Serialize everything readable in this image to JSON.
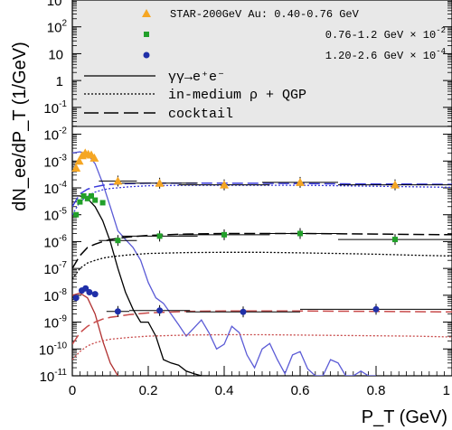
{
  "chart_data": {
    "type": "scatter",
    "title": "",
    "xlabel": "P_T (GeV)",
    "ylabel": "dN_ee/dP_T (1/GeV)",
    "xlim": [
      0,
      1
    ],
    "ylim_log10": [
      -11,
      3
    ],
    "y_scale": "log",
    "x_tick_labels": [
      "0",
      "0.2",
      "0.4",
      "0.6",
      "0.8",
      "1"
    ],
    "y_tick_labels": [
      "10^3",
      "10^2",
      "10",
      "1",
      "10^-1",
      "10^-2",
      "10^-3",
      "10^-4",
      "10^-5",
      "10^-6",
      "10^-7",
      "10^-8",
      "10^-9",
      "10^-10",
      "10^-11"
    ],
    "legend_placement": "top",
    "legend": {
      "data_entries": [
        {
          "label": "STAR-200GeV Au: 0.40-0.76 GeV",
          "color": "#f5a623",
          "marker": "triangle"
        },
        {
          "label": "0.76-1.2 GeV × 10",
          "exp": "-2",
          "color": "#22a02a",
          "marker": "square"
        },
        {
          "label": "1.20-2.6 GeV × 10",
          "exp": "-4",
          "color": "#1f2fa8",
          "marker": "circle"
        }
      ],
      "line_entries": [
        {
          "label": "γγ→e⁺e⁻",
          "style": "solid"
        },
        {
          "label": "in-medium ρ + QGP",
          "style": "dotted"
        },
        {
          "label": "cocktail",
          "style": "dashed"
        }
      ]
    },
    "series": [
      {
        "name": "STAR-200GeV Au: 0.40-0.76 GeV",
        "color": "#f5a623",
        "marker": "triangle",
        "x": [
          0.01,
          0.018,
          0.026,
          0.034,
          0.042,
          0.05,
          0.058,
          0.12,
          0.23,
          0.4,
          0.6,
          0.85
        ],
        "y": [
          0.00055,
          0.001,
          0.0016,
          0.002,
          0.0018,
          0.0017,
          0.0013,
          0.00018,
          0.00015,
          0.00013,
          0.00016,
          0.00013
        ],
        "xerr": [
          0,
          0,
          0,
          0,
          0,
          0,
          0,
          0.05,
          0.1,
          0.12,
          0.1,
          0.15
        ]
      },
      {
        "name": "0.76-1.2 GeV × 10^-2",
        "color": "#22a02a",
        "marker": "square",
        "x": [
          0.01,
          0.02,
          0.03,
          0.04,
          0.05,
          0.06,
          0.08,
          0.12,
          0.23,
          0.4,
          0.6,
          0.85
        ],
        "y": [
          1e-05,
          3e-05,
          5e-05,
          4e-05,
          5e-05,
          3.5e-05,
          2.8e-05,
          1.1e-06,
          1.6e-06,
          1.8e-06,
          2e-06,
          1.2e-06
        ],
        "xerr": [
          0,
          0,
          0,
          0,
          0,
          0,
          0,
          0.05,
          0.1,
          0.12,
          0.1,
          0.15
        ]
      },
      {
        "name": "1.20-2.6 GeV × 10^-4",
        "color": "#1f2fa8",
        "marker": "circle",
        "x": [
          0.01,
          0.025,
          0.035,
          0.045,
          0.06,
          0.12,
          0.23,
          0.45,
          0.8
        ],
        "y": [
          8e-09,
          1.5e-08,
          1.8e-08,
          1.3e-08,
          1.1e-08,
          2.5e-09,
          2.7e-09,
          2.4e-09,
          3e-09
        ],
        "xerr": [
          0,
          0,
          0,
          0,
          0,
          0.03,
          0.08,
          0.15,
          0.2
        ]
      }
    ],
    "curves": [
      {
        "name": "γγ→e⁺e⁻ (0.40-0.76)",
        "color": "#5b5bd6",
        "style": "solid",
        "x": [
          0.0,
          0.02,
          0.04,
          0.06,
          0.08,
          0.1,
          0.12,
          0.14,
          0.16,
          0.18,
          0.2,
          0.22,
          0.24,
          0.26,
          0.28,
          0.3,
          0.32,
          0.34,
          0.36,
          0.38,
          0.4,
          0.42,
          0.44,
          0.46,
          0.48,
          0.5,
          0.52,
          0.54,
          0.56,
          0.58,
          0.6,
          0.62,
          0.64,
          0.66,
          0.68,
          0.7,
          0.72,
          0.74,
          0.76,
          0.78,
          0.8
        ],
        "y": [
          0.002,
          0.0022,
          0.0018,
          0.0008,
          0.00015,
          2e-05,
          2.5e-06,
          1.2e-06,
          6e-07,
          2e-07,
          3e-08,
          8e-09,
          5e-09,
          2e-09,
          8e-10,
          3e-10,
          6e-10,
          1.2e-09,
          4e-10,
          1e-10,
          1.5e-10,
          7e-10,
          4e-10,
          6e-11,
          2e-11,
          1e-10,
          1.6e-10,
          4e-11,
          1.2e-11,
          6e-11,
          8e-11,
          1.8e-11,
          1e-11,
          1e-11,
          4e-11,
          3e-11,
          1e-11,
          1e-11,
          1.5e-11,
          1e-11,
          1e-11
        ]
      },
      {
        "name": "γγ→e⁺e⁻ (0.76-1.2)",
        "color": "#000000",
        "style": "solid",
        "x": [
          0.0,
          0.02,
          0.04,
          0.06,
          0.08,
          0.1,
          0.12,
          0.14,
          0.16,
          0.18,
          0.2,
          0.22,
          0.24,
          0.26,
          0.28,
          0.3,
          0.32,
          0.34,
          0.36,
          0.38,
          0.4
        ],
        "y": [
          5e-05,
          5e-05,
          4e-05,
          2e-05,
          6e-06,
          1e-06,
          1e-07,
          1.3e-08,
          3e-09,
          1e-09,
          1e-09,
          3e-10,
          4e-11,
          3e-11,
          2.5e-11,
          1.5e-11,
          1.2e-11,
          1e-11,
          1e-11,
          8e-12,
          1e-11
        ]
      },
      {
        "name": "γγ→e⁺e⁻ (1.20-2.6)",
        "color": "#b03030",
        "style": "solid",
        "x": [
          0.0,
          0.02,
          0.04,
          0.06,
          0.08,
          0.1,
          0.12,
          0.14,
          0.16,
          0.18
        ],
        "y": [
          1e-08,
          1.2e-08,
          8e-09,
          2e-09,
          2e-10,
          3e-11,
          1e-11,
          5e-12,
          3e-12,
          1e-12
        ]
      },
      {
        "name": "in-medium ρ + QGP (0.40-0.76)",
        "color": "#3a3adc",
        "style": "dotted",
        "x": [
          0.0,
          0.02,
          0.04,
          0.06,
          0.08,
          0.1,
          0.15,
          0.2,
          0.3,
          0.4,
          0.5,
          0.6,
          0.7,
          0.8,
          0.9,
          1.0
        ],
        "y": [
          1e-05,
          3e-05,
          5e-05,
          7e-05,
          8.5e-05,
          9.5e-05,
          0.00011,
          0.00012,
          0.000125,
          0.000125,
          0.000125,
          0.000125,
          0.00012,
          0.000115,
          0.00011,
          0.000105
        ]
      },
      {
        "name": "cocktail (0.40-0.76)",
        "color": "#3a3adc",
        "style": "dashed",
        "x": [
          0.0,
          0.02,
          0.04,
          0.06,
          0.08,
          0.1,
          0.15,
          0.2,
          0.3,
          0.4,
          0.5,
          0.6,
          0.7,
          0.8,
          0.9,
          1.0
        ],
        "y": [
          2e-05,
          6e-05,
          9e-05,
          0.00011,
          0.000125,
          0.000135,
          0.000145,
          0.00015,
          0.00015,
          0.00015,
          0.000148,
          0.000145,
          0.000142,
          0.00014,
          0.000138,
          0.000135
        ]
      },
      {
        "name": "in-medium ρ + QGP (0.76-1.2)",
        "color": "#000000",
        "style": "dotted",
        "x": [
          0.0,
          0.02,
          0.04,
          0.06,
          0.08,
          0.1,
          0.15,
          0.2,
          0.3,
          0.4,
          0.5,
          0.6,
          0.7,
          0.8,
          0.9,
          1.0
        ],
        "y": [
          4e-08,
          1e-07,
          1.6e-07,
          2e-07,
          2.4e-07,
          2.7e-07,
          3.2e-07,
          3.6e-07,
          3.9e-07,
          4e-07,
          4e-07,
          3.8e-07,
          3.6e-07,
          3.4e-07,
          3.1e-07,
          2.9e-07
        ]
      },
      {
        "name": "cocktail (0.76-1.2)",
        "color": "#000000",
        "style": "dashed",
        "x": [
          0.0,
          0.02,
          0.04,
          0.06,
          0.08,
          0.1,
          0.15,
          0.2,
          0.3,
          0.4,
          0.5,
          0.6,
          0.7,
          0.8,
          0.9,
          1.0
        ],
        "y": [
          1e-07,
          3e-07,
          6e-07,
          8e-07,
          1e-06,
          1.2e-06,
          1.5e-06,
          1.7e-06,
          1.9e-06,
          2e-06,
          2e-06,
          2e-06,
          1.95e-06,
          1.9e-06,
          1.85e-06,
          1.8e-06
        ]
      },
      {
        "name": "in-medium ρ + QGP (1.20-2.6)",
        "color": "#c84a4a",
        "style": "dotted",
        "x": [
          0.0,
          0.02,
          0.04,
          0.06,
          0.08,
          0.1,
          0.15,
          0.2,
          0.3,
          0.4,
          0.5,
          0.6,
          0.7,
          0.8,
          0.9,
          1.0
        ],
        "y": [
          4e-11,
          8e-11,
          1.3e-10,
          1.7e-10,
          2e-10,
          2.3e-10,
          2.7e-10,
          3e-10,
          3.3e-10,
          3.4e-10,
          3.4e-10,
          3.3e-10,
          3.2e-10,
          3.1e-10,
          3e-10,
          2.8e-10
        ]
      },
      {
        "name": "cocktail (1.20-2.6)",
        "color": "#c84a4a",
        "style": "dashed",
        "x": [
          0.0,
          0.02,
          0.04,
          0.06,
          0.08,
          0.1,
          0.15,
          0.2,
          0.3,
          0.4,
          0.5,
          0.6,
          0.7,
          0.8,
          0.9,
          1.0
        ],
        "y": [
          1.5e-10,
          4e-10,
          7e-10,
          1e-09,
          1.3e-09,
          1.5e-09,
          1.9e-09,
          2.2e-09,
          2.5e-09,
          2.6e-09,
          2.6e-09,
          2.6e-09,
          2.55e-09,
          2.5e-09,
          2.45e-09,
          2.4e-09
        ]
      }
    ]
  }
}
